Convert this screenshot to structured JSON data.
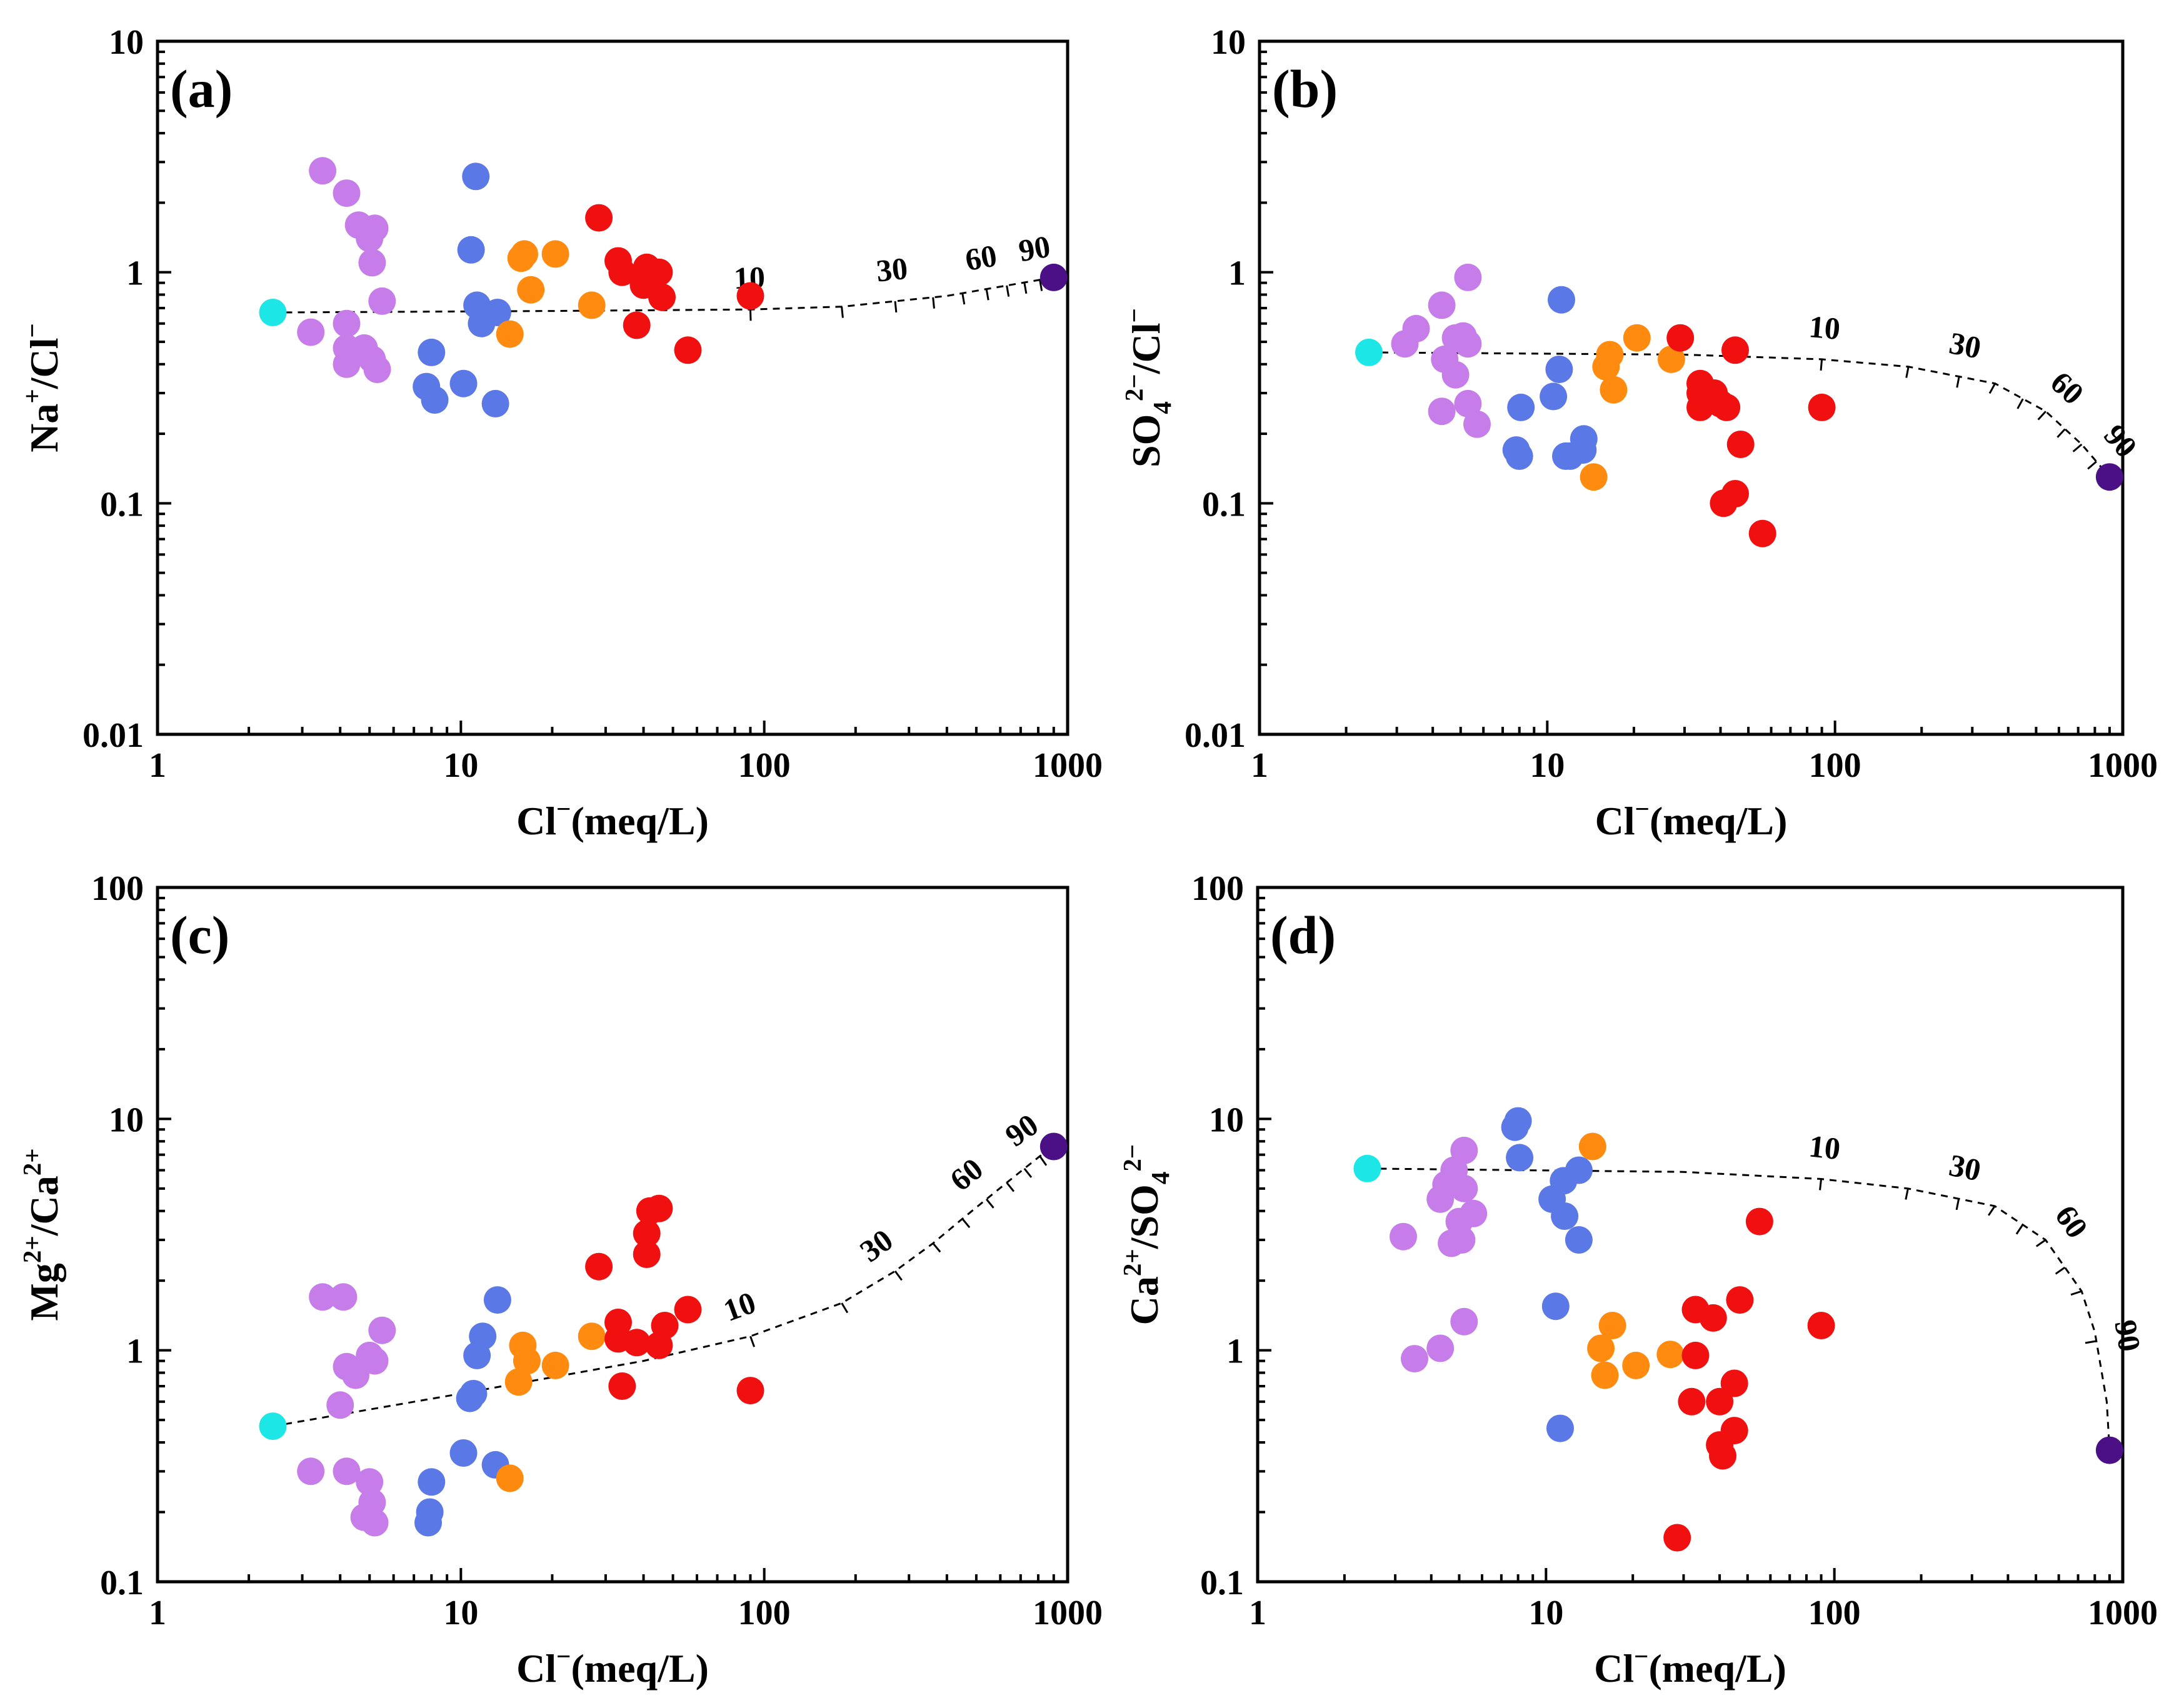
{
  "colors": {
    "group_violet": "#c77de9",
    "group_blue": "#5a78e6",
    "group_orange": "#ff8a10",
    "group_red": "#f01010",
    "endmember_fresh": "#1de6e6",
    "endmember_sea": "#4b0f86"
  },
  "chart_data": [
    {
      "id": "a",
      "panel_label": "(a)",
      "type": "scatter",
      "xlabel": "Cl-(meq/L)",
      "ylabel": "Na+/Cl-",
      "xlog": true,
      "ylog": true,
      "xlim": [
        1,
        1000
      ],
      "ylim": [
        0.01,
        10
      ],
      "x_ticks": [
        "1",
        "10",
        "100",
        "1000"
      ],
      "y_ticks": [
        "0.01",
        "0.1",
        "1",
        "10"
      ],
      "endmembers": [
        {
          "x": 2.4,
          "y": 0.67,
          "color": "#1de6e6"
        },
        {
          "x": 900,
          "y": 0.95,
          "color": "#4b0f86"
        }
      ],
      "mixing_line": [
        [
          2.4,
          0.67
        ],
        [
          20,
          0.68
        ],
        [
          90,
          0.69
        ],
        [
          180,
          0.71
        ],
        [
          400,
          0.79
        ],
        [
          900,
          0.95
        ]
      ],
      "mixing_ticks": [
        {
          "x": 90,
          "label": "10"
        },
        {
          "x": 180
        },
        {
          "x": 270,
          "label": "30"
        },
        {
          "x": 360
        },
        {
          "x": 450
        },
        {
          "x": 540,
          "label": "60"
        },
        {
          "x": 630
        },
        {
          "x": 720
        },
        {
          "x": 810,
          "label": "90"
        }
      ],
      "series": [
        {
          "name": "violet",
          "color": "#c77de9",
          "points": [
            [
              3.5,
              2.75
            ],
            [
              4.2,
              2.2
            ],
            [
              4.6,
              1.6
            ],
            [
              5.2,
              1.55
            ],
            [
              5.0,
              1.4
            ],
            [
              5.1,
              1.1
            ],
            [
              5.5,
              0.75
            ],
            [
              3.2,
              0.55
            ],
            [
              4.2,
              0.6
            ],
            [
              4.2,
              0.47
            ],
            [
              4.8,
              0.47
            ],
            [
              5.1,
              0.42
            ],
            [
              4.2,
              0.4
            ],
            [
              5.3,
              0.38
            ]
          ]
        },
        {
          "name": "blue",
          "color": "#5a78e6",
          "points": [
            [
              11.2,
              2.6
            ],
            [
              10.8,
              1.25
            ],
            [
              11.3,
              0.72
            ],
            [
              13.2,
              0.67
            ],
            [
              11.7,
              0.6
            ],
            [
              8.0,
              0.45
            ],
            [
              7.7,
              0.32
            ],
            [
              10.2,
              0.33
            ],
            [
              8.2,
              0.28
            ],
            [
              13.0,
              0.27
            ]
          ]
        },
        {
          "name": "orange",
          "color": "#ff8a10",
          "points": [
            [
              16.2,
              1.2
            ],
            [
              15.8,
              1.15
            ],
            [
              20.5,
              1.2
            ],
            [
              17.0,
              0.84
            ],
            [
              27.0,
              0.72
            ],
            [
              14.5,
              0.54
            ]
          ]
        },
        {
          "name": "red",
          "color": "#f01010",
          "points": [
            [
              28.5,
              1.72
            ],
            [
              33.0,
              1.12
            ],
            [
              34.0,
              1.0
            ],
            [
              41.0,
              1.05
            ],
            [
              45.0,
              1.0
            ],
            [
              43.0,
              0.92
            ],
            [
              40.0,
              0.88
            ],
            [
              46.0,
              0.78
            ],
            [
              90.0,
              0.79
            ],
            [
              38.0,
              0.59
            ],
            [
              56.0,
              0.46
            ]
          ]
        }
      ]
    },
    {
      "id": "b",
      "panel_label": "(b)",
      "type": "scatter",
      "xlabel": "Cl-(meq/L)",
      "ylabel": "SO42-/Cl-",
      "xlog": true,
      "ylog": true,
      "xlim": [
        1,
        1000
      ],
      "ylim": [
        0.01,
        10
      ],
      "x_ticks": [
        "1",
        "10",
        "100",
        "1000"
      ],
      "y_ticks": [
        "0.01",
        "0.1",
        "1",
        "10"
      ],
      "endmembers": [
        {
          "x": 2.4,
          "y": 0.45,
          "color": "#1de6e6"
        },
        {
          "x": 900,
          "y": 0.13,
          "color": "#4b0f86"
        }
      ],
      "mixing_line": [
        [
          2.4,
          0.45
        ],
        [
          30,
          0.44
        ],
        [
          90,
          0.42
        ],
        [
          180,
          0.39
        ],
        [
          360,
          0.33
        ],
        [
          540,
          0.25
        ],
        [
          720,
          0.18
        ],
        [
          900,
          0.13
        ]
      ],
      "mixing_ticks": [
        {
          "x": 90,
          "label": "10"
        },
        {
          "x": 180
        },
        {
          "x": 270,
          "label": "30"
        },
        {
          "x": 360
        },
        {
          "x": 450
        },
        {
          "x": 540,
          "label": "60"
        },
        {
          "x": 630
        },
        {
          "x": 720
        },
        {
          "x": 810,
          "label": "90"
        }
      ],
      "series": [
        {
          "name": "violet",
          "color": "#c77de9",
          "points": [
            [
              5.3,
              0.95
            ],
            [
              4.3,
              0.72
            ],
            [
              3.5,
              0.57
            ],
            [
              4.8,
              0.52
            ],
            [
              5.1,
              0.53
            ],
            [
              3.2,
              0.49
            ],
            [
              5.3,
              0.49
            ],
            [
              4.4,
              0.42
            ],
            [
              4.8,
              0.36
            ],
            [
              5.3,
              0.27
            ],
            [
              4.3,
              0.25
            ],
            [
              5.7,
              0.22
            ]
          ]
        },
        {
          "name": "blue",
          "color": "#5a78e6",
          "points": [
            [
              11.2,
              0.76
            ],
            [
              11.0,
              0.38
            ],
            [
              10.5,
              0.29
            ],
            [
              8.1,
              0.26
            ],
            [
              13.4,
              0.19
            ],
            [
              7.8,
              0.17
            ],
            [
              13.3,
              0.17
            ],
            [
              11.6,
              0.16
            ],
            [
              12.0,
              0.16
            ],
            [
              8.0,
              0.16
            ]
          ]
        },
        {
          "name": "orange",
          "color": "#ff8a10",
          "points": [
            [
              20.5,
              0.52
            ],
            [
              16.5,
              0.44
            ],
            [
              27.0,
              0.42
            ],
            [
              16.0,
              0.39
            ],
            [
              17.0,
              0.31
            ],
            [
              14.5,
              0.13
            ]
          ]
        },
        {
          "name": "red",
          "color": "#f01010",
          "points": [
            [
              29.0,
              0.52
            ],
            [
              45.0,
              0.46
            ],
            [
              34.0,
              0.33
            ],
            [
              34.0,
              0.3
            ],
            [
              38.0,
              0.3
            ],
            [
              40.0,
              0.27
            ],
            [
              42.0,
              0.26
            ],
            [
              34.0,
              0.26
            ],
            [
              90.0,
              0.26
            ],
            [
              47.0,
              0.18
            ],
            [
              45.0,
              0.11
            ],
            [
              41.0,
              0.1
            ],
            [
              56.0,
              0.074
            ]
          ]
        }
      ]
    },
    {
      "id": "c",
      "panel_label": "(c)",
      "type": "scatter",
      "xlabel": "Cl-(meq/L)",
      "ylabel": "Mg2+/Ca2+",
      "xlog": true,
      "ylog": true,
      "xlim": [
        1,
        1000
      ],
      "ylim": [
        0.1,
        100
      ],
      "x_ticks": [
        "1",
        "10",
        "100",
        "1000"
      ],
      "y_ticks": [
        "0.1",
        "1",
        "10",
        "100"
      ],
      "endmembers": [
        {
          "x": 2.4,
          "y": 0.47,
          "color": "#1de6e6"
        },
        {
          "x": 900,
          "y": 7.6,
          "color": "#4b0f86"
        }
      ],
      "mixing_line": [
        [
          2.4,
          0.47
        ],
        [
          10,
          0.65
        ],
        [
          40,
          0.9
        ],
        [
          90,
          1.15
        ],
        [
          180,
          1.6
        ],
        [
          270,
          2.2
        ],
        [
          360,
          2.9
        ],
        [
          450,
          3.7
        ],
        [
          540,
          4.5
        ],
        [
          630,
          5.3
        ],
        [
          720,
          6.1
        ],
        [
          810,
          6.9
        ],
        [
          900,
          7.6
        ]
      ],
      "mixing_ticks": [
        {
          "x": 90,
          "label": "10"
        },
        {
          "x": 180
        },
        {
          "x": 270,
          "label": "30"
        },
        {
          "x": 360
        },
        {
          "x": 450
        },
        {
          "x": 540,
          "label": "60"
        },
        {
          "x": 630
        },
        {
          "x": 720
        },
        {
          "x": 810,
          "label": "90"
        }
      ],
      "series": [
        {
          "name": "violet",
          "color": "#c77de9",
          "points": [
            [
              3.5,
              1.7
            ],
            [
              4.1,
              1.7
            ],
            [
              5.5,
              1.22
            ],
            [
              5.0,
              0.95
            ],
            [
              5.2,
              0.9
            ],
            [
              4.2,
              0.85
            ],
            [
              4.5,
              0.78
            ],
            [
              4.0,
              0.58
            ],
            [
              3.2,
              0.3
            ],
            [
              4.2,
              0.3
            ],
            [
              5.0,
              0.27
            ],
            [
              5.1,
              0.22
            ],
            [
              4.8,
              0.19
            ],
            [
              5.2,
              0.18
            ]
          ]
        },
        {
          "name": "blue",
          "color": "#5a78e6",
          "points": [
            [
              13.2,
              1.65
            ],
            [
              11.8,
              1.15
            ],
            [
              11.3,
              0.95
            ],
            [
              11.0,
              0.65
            ],
            [
              10.7,
              0.62
            ],
            [
              10.2,
              0.36
            ],
            [
              13.0,
              0.32
            ],
            [
              8.0,
              0.27
            ],
            [
              7.9,
              0.2
            ],
            [
              7.8,
              0.18
            ]
          ]
        },
        {
          "name": "orange",
          "color": "#ff8a10",
          "points": [
            [
              16.0,
              1.05
            ],
            [
              16.5,
              0.9
            ],
            [
              27.0,
              1.15
            ],
            [
              20.5,
              0.86
            ],
            [
              15.5,
              0.73
            ],
            [
              14.5,
              0.28
            ]
          ]
        },
        {
          "name": "red",
          "color": "#f01010",
          "points": [
            [
              45.0,
              4.1
            ],
            [
              42.0,
              4.0
            ],
            [
              41.0,
              3.2
            ],
            [
              41.0,
              2.6
            ],
            [
              28.5,
              2.3
            ],
            [
              56.0,
              1.5
            ],
            [
              33.0,
              1.32
            ],
            [
              47.0,
              1.28
            ],
            [
              33.0,
              1.12
            ],
            [
              38.0,
              1.08
            ],
            [
              45.0,
              1.05
            ],
            [
              34.0,
              0.7
            ],
            [
              90.0,
              0.67
            ]
          ]
        }
      ]
    },
    {
      "id": "d",
      "panel_label": "(d)",
      "type": "scatter",
      "xlabel": "Cl-(meq/L)",
      "ylabel": "Ca2+/SO42-",
      "xlog": true,
      "ylog": true,
      "xlim": [
        1,
        1000
      ],
      "ylim": [
        0.1,
        100
      ],
      "x_ticks": [
        "1",
        "10",
        "100",
        "1000"
      ],
      "y_ticks": [
        "0.1",
        "1",
        "10",
        "100"
      ],
      "endmembers": [
        {
          "x": 2.4,
          "y": 6.1,
          "color": "#1de6e6"
        },
        {
          "x": 900,
          "y": 0.37,
          "color": "#4b0f86"
        }
      ],
      "mixing_line": [
        [
          2.4,
          6.1
        ],
        [
          30,
          5.9
        ],
        [
          90,
          5.5
        ],
        [
          180,
          5.0
        ],
        [
          360,
          4.2
        ],
        [
          540,
          3.0
        ],
        [
          720,
          1.8
        ],
        [
          800,
          1.2
        ],
        [
          880,
          0.6
        ],
        [
          900,
          0.37
        ]
      ],
      "mixing_ticks": [
        {
          "x": 90,
          "label": "10"
        },
        {
          "x": 180
        },
        {
          "x": 270,
          "label": "30"
        },
        {
          "x": 360
        },
        {
          "x": 450
        },
        {
          "x": 540,
          "label": "60"
        },
        {
          "x": 630
        },
        {
          "x": 720
        },
        {
          "x": 810,
          "label": "90"
        }
      ],
      "series": [
        {
          "name": "violet",
          "color": "#c77de9",
          "points": [
            [
              5.2,
              7.3
            ],
            [
              4.8,
              6.0
            ],
            [
              4.5,
              5.2
            ],
            [
              5.2,
              5.0
            ],
            [
              4.3,
              4.5
            ],
            [
              5.6,
              3.9
            ],
            [
              5.0,
              3.6
            ],
            [
              3.2,
              3.1
            ],
            [
              4.7,
              2.9
            ],
            [
              5.1,
              3.0
            ],
            [
              5.2,
              1.33
            ],
            [
              4.3,
              1.02
            ],
            [
              3.5,
              0.92
            ]
          ]
        },
        {
          "name": "blue",
          "color": "#5a78e6",
          "points": [
            [
              8.0,
              9.8
            ],
            [
              7.8,
              9.2
            ],
            [
              8.1,
              6.8
            ],
            [
              13.0,
              6.0
            ],
            [
              11.5,
              5.4
            ],
            [
              10.5,
              4.5
            ],
            [
              11.6,
              3.8
            ],
            [
              13.0,
              3.0
            ],
            [
              10.8,
              1.55
            ],
            [
              11.2,
              0.46
            ]
          ]
        },
        {
          "name": "orange",
          "color": "#ff8a10",
          "points": [
            [
              14.5,
              7.6
            ],
            [
              17.0,
              1.28
            ],
            [
              15.5,
              1.02
            ],
            [
              27.0,
              0.96
            ],
            [
              20.5,
              0.86
            ],
            [
              16.0,
              0.78
            ]
          ]
        },
        {
          "name": "red",
          "color": "#f01010",
          "points": [
            [
              55.0,
              3.6
            ],
            [
              33.0,
              1.5
            ],
            [
              38.0,
              1.38
            ],
            [
              47.0,
              1.65
            ],
            [
              90.0,
              1.28
            ],
            [
              33.0,
              0.95
            ],
            [
              45.0,
              0.72
            ],
            [
              32.0,
              0.6
            ],
            [
              40.0,
              0.6
            ],
            [
              45.0,
              0.45
            ],
            [
              40.0,
              0.39
            ],
            [
              41.0,
              0.35
            ],
            [
              28.5,
              0.155
            ]
          ]
        }
      ]
    }
  ]
}
